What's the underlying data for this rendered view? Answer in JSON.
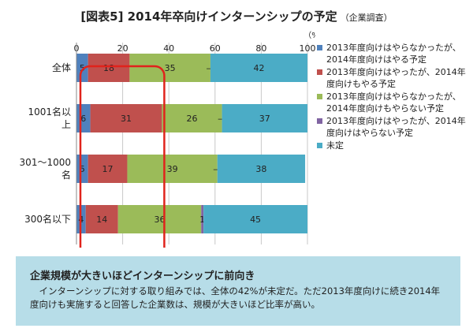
{
  "title": {
    "main": "[図表5] 2014年卒向けインターンシップの予定",
    "sub": "（企業調査）"
  },
  "chart_data": {
    "type": "bar",
    "orientation": "horizontal",
    "stacked": true,
    "unit_label": "（%）",
    "xlim": [
      0,
      100
    ],
    "ticks": [
      0,
      20,
      40,
      60,
      80,
      100
    ],
    "grid": true,
    "legend_position": "right",
    "categories": [
      "全体",
      "1001名以上",
      "301～1000名",
      "300名以下"
    ],
    "series": [
      {
        "name": "2013年度向けはやらなかったが、2014年度向けはやる予定",
        "color": "#4f81bd",
        "values": [
          5,
          6,
          5,
          4
        ],
        "labels": [
          "5",
          "6",
          "5",
          "4"
        ]
      },
      {
        "name": "2013年度向けはやったが、2014年度向けもやる予定",
        "color": "#c0504d",
        "values": [
          18,
          31,
          17,
          14
        ],
        "labels": [
          "18",
          "31",
          "17",
          "14"
        ]
      },
      {
        "name": "2013年度向けはやらなかったが、2014年度向けもやらない予定",
        "color": "#9bbb59",
        "values": [
          35,
          26,
          39,
          36
        ],
        "labels": [
          "35",
          "26",
          "39",
          "36"
        ]
      },
      {
        "name": "2013年度向けはやったが、2014年度向けはやらない予定",
        "color": "#8064a2",
        "values": [
          0,
          0,
          0,
          1
        ],
        "labels": [
          "—",
          "—",
          "—",
          "1"
        ]
      },
      {
        "name": "未定",
        "color": "#4bacc6",
        "values": [
          42,
          37,
          38,
          45
        ],
        "labels": [
          "42",
          "37",
          "38",
          "45"
        ]
      }
    ],
    "highlight": {
      "color": "#e0231c",
      "x_range": [
        0,
        37
      ]
    }
  },
  "legend": {
    "items": [
      {
        "label": "2013年度向けはやらなかったが、2014年度向けはやる予定",
        "color": "#4f81bd"
      },
      {
        "label": "2013年度向けはやったが、2014年度向けもやる予定",
        "color": "#c0504d"
      },
      {
        "label": "2013年度向けはやらなかったが、2014年度向けもやらない予定",
        "color": "#9bbb59"
      },
      {
        "label": "2013年度向けはやったが、2014年度向けはやらない予定",
        "color": "#8064a2"
      },
      {
        "label": "未定",
        "color": "#4bacc6"
      }
    ]
  },
  "note": {
    "title": "企業規模が大きいほどインターンシップに前向き",
    "body": "インターンシップに対する取り組みでは、全体の42%が未定だ。ただ2013年度向けに続き2014年度向けも実施すると回答した企業数は、規模が大きいほど比率が高い。",
    "background": "#b7dde8"
  }
}
